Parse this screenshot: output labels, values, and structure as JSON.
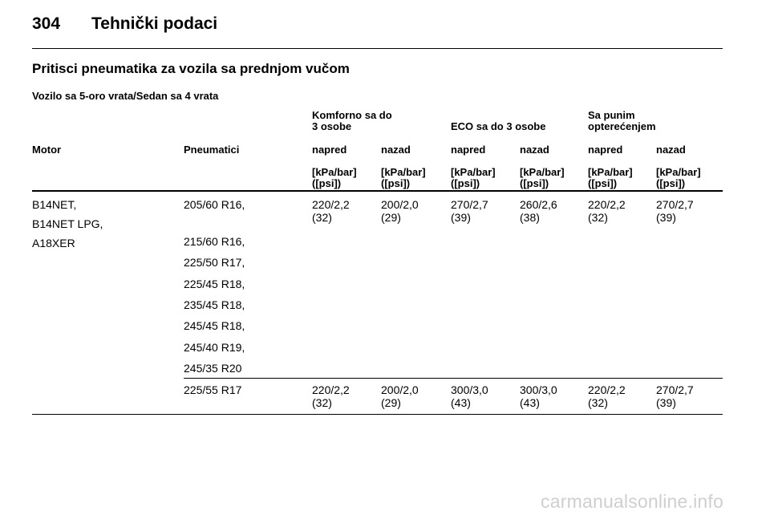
{
  "header": {
    "page_number": "304",
    "title": "Tehnički podaci"
  },
  "section_title": "Pritisci pneumatika za vozila sa prednjom vučom",
  "subsection_title": "Vozilo sa 5-oro vrata/Sedan sa 4 vrata",
  "table": {
    "groups": {
      "comfort_line1": "Komforno sa do",
      "comfort_line2": "3 osobe",
      "eco": "ECO sa do 3 osobe",
      "full_line1": "Sa punim",
      "full_line2": "opterećenjem"
    },
    "columns": {
      "motor": "Motor",
      "tyres": "Pneumatici",
      "front": "napred",
      "rear": "nazad"
    },
    "unit_line1": "[kPa/bar]",
    "unit_line2": "([psi])",
    "motors": [
      "B14NET,",
      "B14NET LPG,",
      "A18XER"
    ],
    "row1": {
      "tyres": [
        "205/60 R16,",
        "215/60 R16,",
        "225/50 R17,",
        "225/45 R18,",
        "235/45 R18,",
        "245/45 R18,",
        "245/40 R19,",
        "245/35 R20"
      ],
      "values": [
        {
          "main": "220/2,2",
          "psi": "(32)"
        },
        {
          "main": "200/2,0",
          "psi": "(29)"
        },
        {
          "main": "270/2,7",
          "psi": "(39)"
        },
        {
          "main": "260/2,6",
          "psi": "(38)"
        },
        {
          "main": "220/2,2",
          "psi": "(32)"
        },
        {
          "main": "270/2,7",
          "psi": "(39)"
        }
      ]
    },
    "row2": {
      "tyres": "225/55 R17",
      "values": [
        {
          "main": "220/2,2",
          "psi": "(32)"
        },
        {
          "main": "200/2,0",
          "psi": "(29)"
        },
        {
          "main": "300/3,0",
          "psi": "(43)"
        },
        {
          "main": "300/3,0",
          "psi": "(43)"
        },
        {
          "main": "220/2,2",
          "psi": "(32)"
        },
        {
          "main": "270/2,7",
          "psi": "(39)"
        }
      ]
    }
  },
  "watermark": "carmanualsonline.info"
}
